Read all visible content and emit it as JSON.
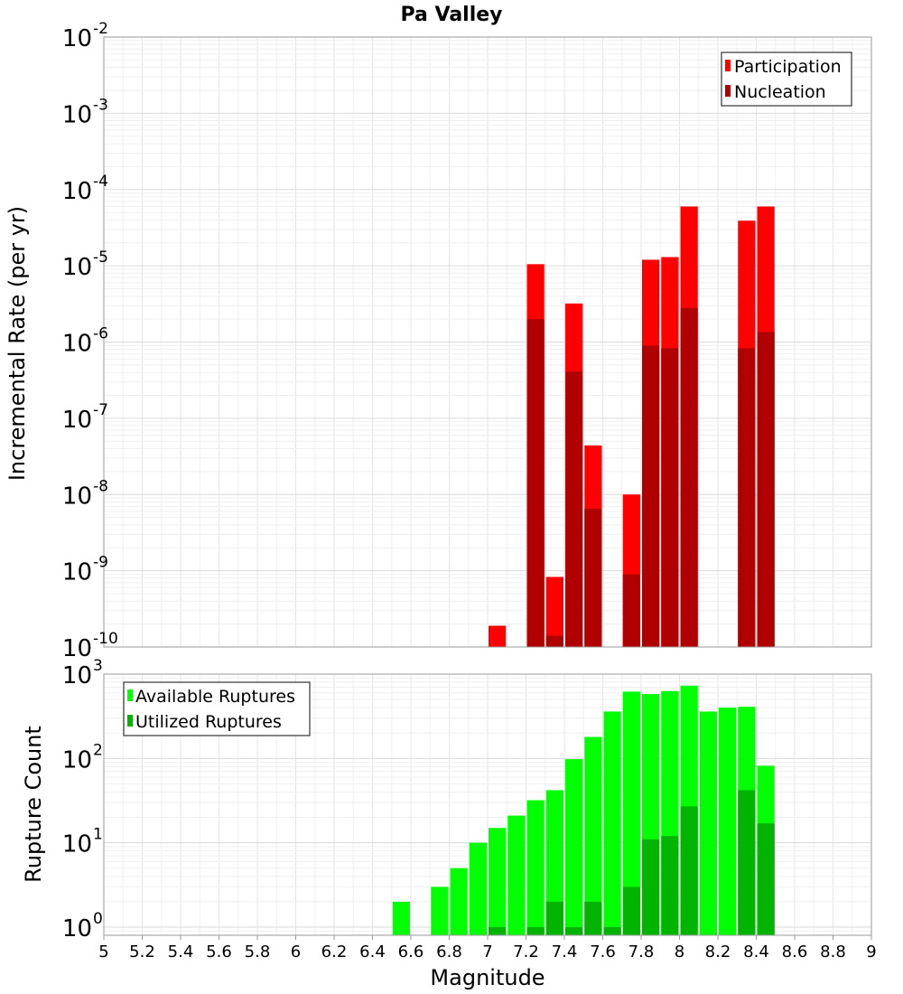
{
  "chart_data": [
    {
      "type": "bar",
      "title": "Pa Valley",
      "xlabel": "",
      "ylabel": "Incremental Rate (per yr)",
      "yscale": "log",
      "ylim": [
        1e-10,
        0.01
      ],
      "xlim": [
        5,
        9
      ],
      "ytick_bases": [
        "10",
        "10",
        "10",
        "10",
        "10",
        "10",
        "10",
        "10",
        "10"
      ],
      "ytick_exps": [
        "-10",
        "-9",
        "-8",
        "-7",
        "-6",
        "-5",
        "-4",
        "-3",
        "-2"
      ],
      "grid": true,
      "legend_position": "top-right",
      "series": [
        {
          "name": "Participation",
          "color": "#ff0000",
          "x": [
            7.05,
            7.25,
            7.35,
            7.45,
            7.55,
            7.75,
            7.85,
            7.95,
            8.05,
            8.35,
            8.45
          ],
          "values": [
            1.9e-10,
            1.05e-05,
            8.3e-10,
            3.2e-06,
            4.4e-08,
            1e-08,
            1.2e-05,
            1.3e-05,
            6e-05,
            3.9e-05,
            6e-05
          ]
        },
        {
          "name": "Nucleation",
          "color": "#b00000",
          "x": [
            7.25,
            7.35,
            7.45,
            7.55,
            7.75,
            7.85,
            7.95,
            8.05,
            8.35,
            8.45
          ],
          "values": [
            2e-06,
            1.4e-10,
            4.1e-07,
            6.5e-09,
            9e-10,
            9e-07,
            8.3e-07,
            2.8e-06,
            8.3e-07,
            1.35e-06
          ]
        }
      ]
    },
    {
      "type": "bar",
      "title": "",
      "xlabel": "Magnitude",
      "ylabel": "Rupture Count",
      "yscale": "log",
      "ylim": [
        0.8,
        1000
      ],
      "xlim": [
        5,
        9
      ],
      "xticks": [
        "5",
        "5.2",
        "5.4",
        "5.6",
        "5.8",
        "6",
        "6.2",
        "6.4",
        "6.6",
        "6.8",
        "7",
        "7.2",
        "7.4",
        "7.6",
        "7.8",
        "8",
        "8.2",
        "8.4",
        "8.6",
        "8.8",
        "9"
      ],
      "ytick_bases": [
        "10",
        "10",
        "10",
        "10"
      ],
      "ytick_exps": [
        "0",
        "1",
        "2",
        "3"
      ],
      "grid": true,
      "legend_position": "top-left",
      "series": [
        {
          "name": "Available Ruptures",
          "color": "#00ff00",
          "x": [
            6.55,
            6.75,
            6.85,
            6.95,
            7.05,
            7.15,
            7.25,
            7.35,
            7.45,
            7.55,
            7.65,
            7.75,
            7.85,
            7.95,
            8.05,
            8.15,
            8.25,
            8.35,
            8.45
          ],
          "values": [
            2,
            3,
            5,
            10,
            15,
            21,
            32,
            42,
            98,
            180,
            360,
            620,
            580,
            630,
            730,
            360,
            400,
            410,
            82
          ]
        },
        {
          "name": "Utilized Ruptures",
          "color": "#00b400",
          "x": [
            7.05,
            7.25,
            7.35,
            7.45,
            7.55,
            7.65,
            7.75,
            7.85,
            7.95,
            8.05,
            8.35,
            8.45
          ],
          "values": [
            1,
            1,
            2,
            1,
            2,
            1,
            3,
            11,
            12,
            27,
            42,
            17
          ]
        }
      ]
    }
  ]
}
